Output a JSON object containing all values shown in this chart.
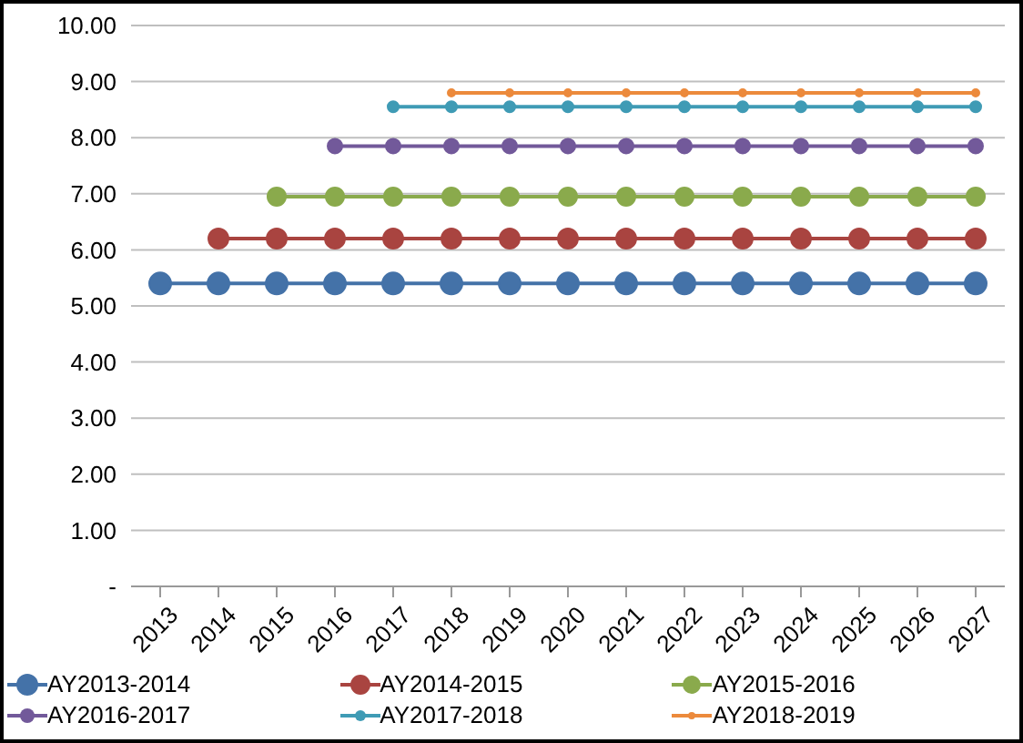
{
  "chart_data": {
    "type": "line",
    "categories": [
      "2013",
      "2014",
      "2015",
      "2016",
      "2017",
      "2018",
      "2019",
      "2020",
      "2021",
      "2022",
      "2023",
      "2024",
      "2025",
      "2026",
      "2027"
    ],
    "series": [
      {
        "name": "AY2013-2014",
        "color": "#4472a8",
        "values": [
          5.4,
          5.4,
          5.4,
          5.4,
          5.4,
          5.4,
          5.4,
          5.4,
          5.4,
          5.4,
          5.4,
          5.4,
          5.4,
          5.4,
          5.4
        ]
      },
      {
        "name": "AY2014-2015",
        "color": "#a94440",
        "values": [
          null,
          6.2,
          6.2,
          6.2,
          6.2,
          6.2,
          6.2,
          6.2,
          6.2,
          6.2,
          6.2,
          6.2,
          6.2,
          6.2,
          6.2
        ]
      },
      {
        "name": "AY2015-2016",
        "color": "#8aaa4c",
        "values": [
          null,
          null,
          6.95,
          6.95,
          6.95,
          6.95,
          6.95,
          6.95,
          6.95,
          6.95,
          6.95,
          6.95,
          6.95,
          6.95,
          6.95
        ]
      },
      {
        "name": "AY2016-2017",
        "color": "#72599a",
        "values": [
          null,
          null,
          null,
          7.85,
          7.85,
          7.85,
          7.85,
          7.85,
          7.85,
          7.85,
          7.85,
          7.85,
          7.85,
          7.85,
          7.85
        ]
      },
      {
        "name": "AY2017-2018",
        "color": "#3f9bb5",
        "values": [
          null,
          null,
          null,
          null,
          8.55,
          8.55,
          8.55,
          8.55,
          8.55,
          8.55,
          8.55,
          8.55,
          8.55,
          8.55,
          8.55
        ]
      },
      {
        "name": "AY2018-2019",
        "color": "#ec8a3c",
        "values": [
          null,
          null,
          null,
          null,
          null,
          8.8,
          8.8,
          8.8,
          8.8,
          8.8,
          8.8,
          8.8,
          8.8,
          8.8,
          8.8
        ]
      }
    ],
    "ylim": [
      0,
      10
    ],
    "yticks": [
      {
        "value": 0,
        "label": "-"
      },
      {
        "value": 1,
        "label": "1.00"
      },
      {
        "value": 2,
        "label": "2.00"
      },
      {
        "value": 3,
        "label": "3.00"
      },
      {
        "value": 4,
        "label": "4.00"
      },
      {
        "value": 5,
        "label": "5.00"
      },
      {
        "value": 6,
        "label": "6.00"
      },
      {
        "value": 7,
        "label": "7.00"
      },
      {
        "value": 8,
        "label": "8.00"
      },
      {
        "value": 9,
        "label": "9.00"
      },
      {
        "value": 10,
        "label": "10.00"
      }
    ],
    "grid": "y",
    "legend": "bottom",
    "marker": "circle",
    "line_style": "solid"
  }
}
